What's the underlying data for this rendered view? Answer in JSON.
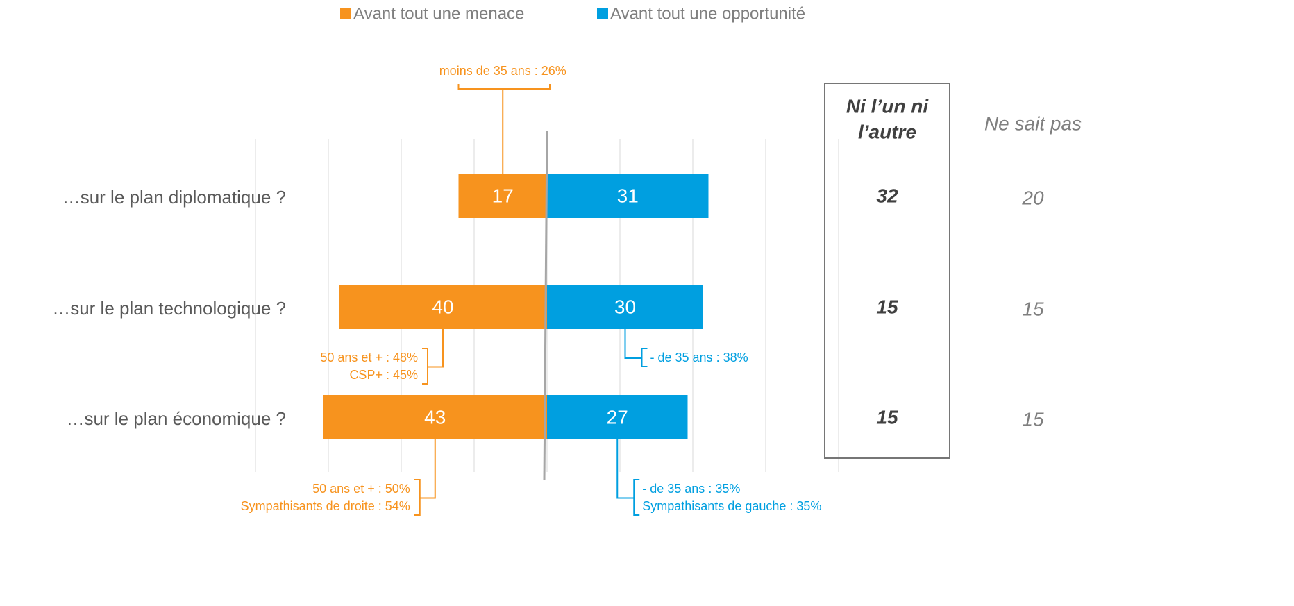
{
  "chart_data": {
    "type": "diverging_bar",
    "categories": [
      "…sur le plan diplomatique ?",
      "…sur le plan technologique ?",
      "…sur le plan économique ?"
    ],
    "series": [
      {
        "name": "Avant tout une menace",
        "color": "#f7931e",
        "values": [
          17,
          40,
          43
        ],
        "annotations": [
          [
            "moins de 35 ans : 26%"
          ],
          [
            "50 ans et + : 48%",
            "CSP+ : 45%"
          ],
          [
            "50 ans et + : 50%",
            "Sympathisants de droite : 54%"
          ]
        ]
      },
      {
        "name": "Avant tout une opportunité",
        "color": "#009fe0",
        "values": [
          31,
          30,
          27
        ],
        "annotations": [
          null,
          [
            "- de 35 ans : 38%"
          ],
          [
            "- de 35 ans : 35%",
            "Sympathisants de gauche  : 35%"
          ]
        ]
      }
    ],
    "columns": [
      {
        "header": [
          "Ni l’un ni",
          "l’autre"
        ],
        "values": [
          32,
          15,
          15
        ],
        "boxed": true
      },
      {
        "header": [
          "Ne sait pas"
        ],
        "values": [
          20,
          15,
          15
        ],
        "boxed": false
      }
    ],
    "xlim": [
      -56,
      56
    ],
    "xticks": [
      -56,
      -42,
      -28,
      -14,
      0,
      14,
      28,
      42,
      56
    ],
    "grid": true
  }
}
